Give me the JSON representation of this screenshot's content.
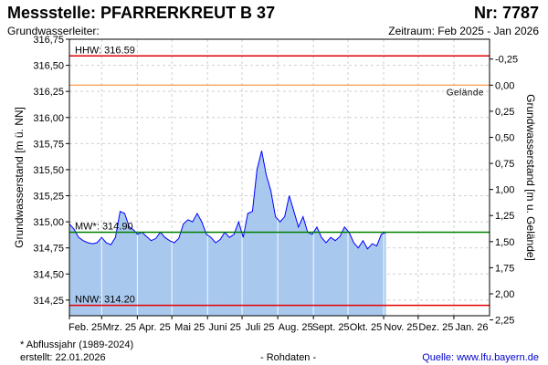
{
  "header": {
    "title": "Messstelle: PFARRERKREUT B 37",
    "nr": "Nr: 7787",
    "subtitle": "Grundwasserleiter:",
    "zeitraum": "Zeitraum: Feb 2025 - Jan 2026"
  },
  "footer": {
    "note": "* Abflussjahr (1989-2024)",
    "created": "erstellt:  22.01.2026",
    "rohdaten": "- Rohdaten -",
    "quelle": "Quelle: www.lfu.bayern.de"
  },
  "colors": {
    "fill": "#a9c8ee",
    "line": "#0000ff",
    "hhw": "#e00000",
    "nnw": "#e00000",
    "mw": "#008000",
    "gelaende": "#ff8020",
    "grid": "#d0d0d0",
    "source_link": "#0000cc"
  },
  "chart_data": {
    "type": "area",
    "ylabel": "Grundwasserstand [m ü. NN]",
    "ylabel_right": "Grundwasserstand [m u. Gelände]",
    "ylim": [
      314.1,
      316.75
    ],
    "yticks": [
      "316,75",
      "316,50",
      "316,25",
      "316,00",
      "315,75",
      "315,50",
      "315,25",
      "315,00",
      "314,75",
      "314,50",
      "314,25"
    ],
    "ytick_values": [
      316.75,
      316.5,
      316.25,
      316.0,
      315.75,
      315.5,
      315.25,
      315.0,
      314.75,
      314.5,
      314.25
    ],
    "right_ticks": [
      "-0,25",
      "0,00",
      "0,25",
      "0,50",
      "0,75",
      "1,00",
      "1,25",
      "1,50",
      "1,75",
      "2,00",
      "2,25"
    ],
    "right_tick_values": [
      -0.25,
      0.0,
      0.25,
      0.5,
      0.75,
      1.0,
      1.25,
      1.5,
      1.75,
      2.0,
      2.25
    ],
    "gelaende_level": 316.31,
    "xticks": [
      "Feb. 25",
      "Mrz. 25",
      "Apr. 25",
      "Mai 25",
      "Juni 25",
      "Juli 25",
      "Aug. 25",
      "Sept. 25",
      "Okt. 25",
      "Nov. 25",
      "Dez. 25",
      "Jan. 26"
    ],
    "grid": true,
    "reference_lines": [
      {
        "label": "HHW: 316.59",
        "value": 316.59,
        "color": "#e00000"
      },
      {
        "label": "MW*: 314.90",
        "value": 314.9,
        "color": "#008000"
      },
      {
        "label": "NNW: 314.20",
        "value": 314.2,
        "color": "#e00000"
      }
    ],
    "gelaende_label": "Gelände",
    "series": [
      {
        "x": [
          "2025-02-01",
          "2025-02-05",
          "2025-02-09",
          "2025-02-13",
          "2025-02-17",
          "2025-02-21",
          "2025-02-25",
          "2025-03-01",
          "2025-03-05",
          "2025-03-09",
          "2025-03-13",
          "2025-03-17",
          "2025-03-21",
          "2025-03-25",
          "2025-03-29",
          "2025-04-01",
          "2025-04-05",
          "2025-04-09",
          "2025-04-13",
          "2025-04-17",
          "2025-04-21",
          "2025-04-25",
          "2025-04-29",
          "2025-05-03",
          "2025-05-07",
          "2025-05-11",
          "2025-05-15",
          "2025-05-19",
          "2025-05-23",
          "2025-05-27",
          "2025-05-31",
          "2025-06-04",
          "2025-06-08",
          "2025-06-12",
          "2025-06-16",
          "2025-06-20",
          "2025-06-24",
          "2025-06-28",
          "2025-07-02",
          "2025-07-06",
          "2025-07-10",
          "2025-07-14",
          "2025-07-18",
          "2025-07-22",
          "2025-07-26",
          "2025-07-30",
          "2025-08-03",
          "2025-08-07",
          "2025-08-11",
          "2025-08-15",
          "2025-08-19",
          "2025-08-23",
          "2025-08-27",
          "2025-08-31",
          "2025-09-04",
          "2025-09-08",
          "2025-09-12",
          "2025-09-16",
          "2025-09-20",
          "2025-09-24",
          "2025-09-28",
          "2025-10-02",
          "2025-10-06",
          "2025-10-10",
          "2025-10-14",
          "2025-10-18",
          "2025-10-22",
          "2025-10-26",
          "2025-10-30",
          "2025-11-03"
        ],
        "values": [
          314.98,
          314.93,
          314.85,
          314.82,
          314.8,
          314.79,
          314.8,
          314.85,
          314.8,
          314.78,
          314.85,
          315.1,
          315.08,
          314.95,
          314.92,
          314.88,
          314.9,
          314.86,
          314.82,
          314.84,
          314.9,
          314.85,
          314.82,
          314.8,
          314.84,
          314.98,
          315.02,
          315.0,
          315.08,
          315.0,
          314.88,
          314.85,
          314.8,
          314.83,
          314.9,
          314.85,
          314.88,
          315.0,
          314.85,
          315.08,
          315.1,
          315.5,
          315.68,
          315.45,
          315.3,
          315.05,
          315.0,
          315.05,
          315.25,
          315.1,
          314.95,
          315.05,
          314.9,
          314.88,
          314.95,
          314.85,
          314.8,
          314.85,
          314.82,
          314.86,
          314.95,
          314.9,
          314.8,
          314.75,
          314.82,
          314.74,
          314.79,
          314.77,
          314.88,
          314.9
        ]
      }
    ]
  }
}
